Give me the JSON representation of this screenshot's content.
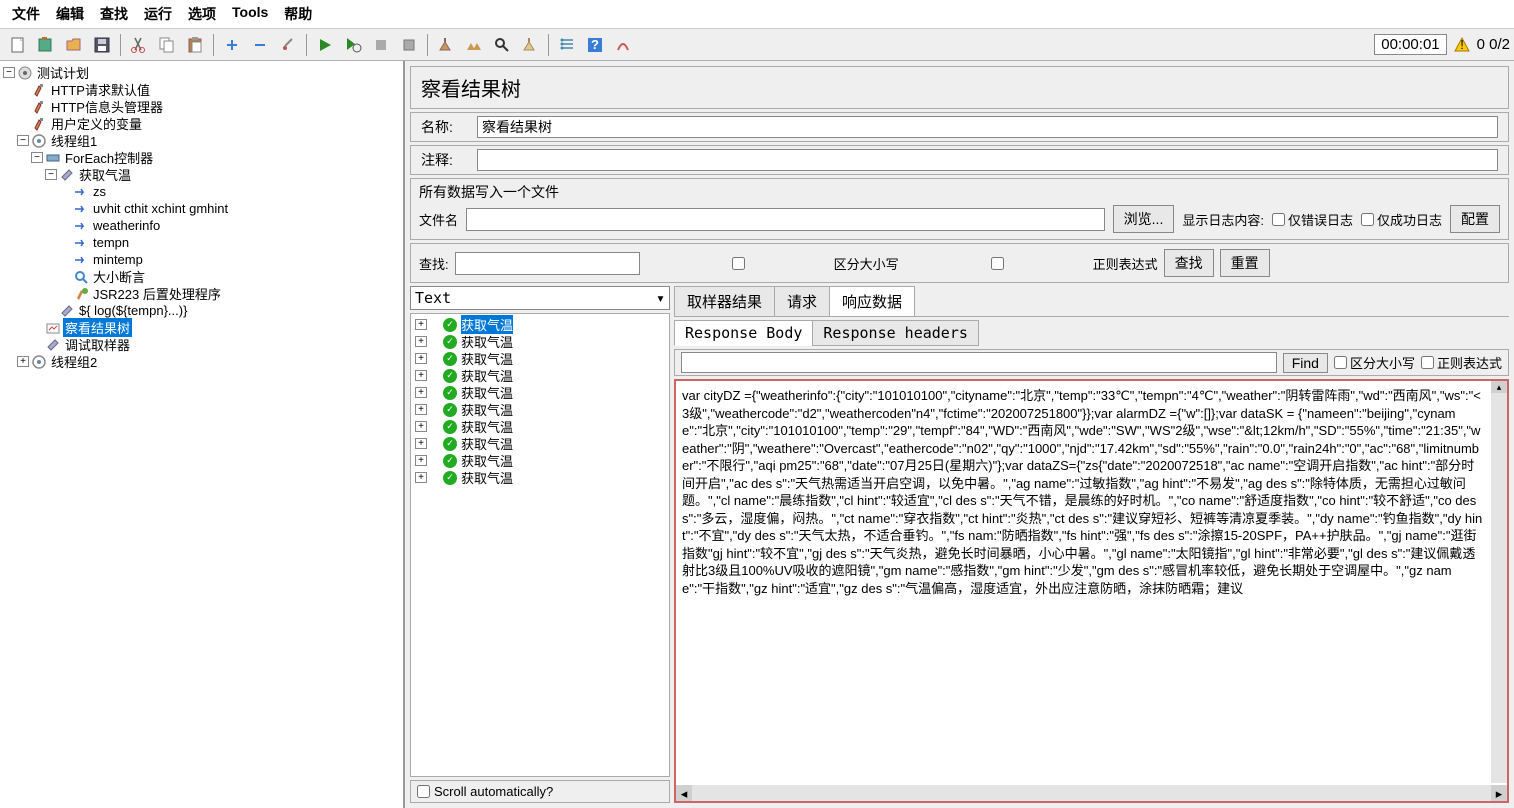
{
  "menu": [
    "文件",
    "编辑",
    "查找",
    "运行",
    "选项",
    "Tools",
    "帮助"
  ],
  "timer": "00:00:01",
  "counter": "0 0/2",
  "tree": [
    {
      "d": 0,
      "t": "-",
      "i": "plan",
      "l": "测试计划"
    },
    {
      "d": 1,
      "t": "",
      "i": "cfg",
      "l": "HTTP请求默认值"
    },
    {
      "d": 1,
      "t": "",
      "i": "cfg",
      "l": "HTTP信息头管理器"
    },
    {
      "d": 1,
      "t": "",
      "i": "cfg",
      "l": "用户定义的变量"
    },
    {
      "d": 1,
      "t": "-",
      "i": "tg",
      "l": "线程组1"
    },
    {
      "d": 2,
      "t": "-",
      "i": "ctrl",
      "l": "ForEach控制器"
    },
    {
      "d": 3,
      "t": "-",
      "i": "http",
      "l": "获取气温"
    },
    {
      "d": 4,
      "t": "",
      "i": "ext",
      "l": "zs"
    },
    {
      "d": 4,
      "t": "",
      "i": "ext",
      "l": "uvhit cthit xchint gmhint"
    },
    {
      "d": 4,
      "t": "",
      "i": "ext",
      "l": "weatherinfo"
    },
    {
      "d": 4,
      "t": "",
      "i": "ext",
      "l": "tempn"
    },
    {
      "d": 4,
      "t": "",
      "i": "ext",
      "l": "mintemp"
    },
    {
      "d": 4,
      "t": "",
      "i": "assert",
      "l": "大小断言"
    },
    {
      "d": 4,
      "t": "",
      "i": "jsr",
      "l": "JSR223 后置处理程序"
    },
    {
      "d": 3,
      "t": "",
      "i": "http",
      "l": "${   log(${tempn}...)}"
    },
    {
      "d": 2,
      "t": "",
      "i": "listener",
      "l": "察看结果树",
      "sel": true
    },
    {
      "d": 2,
      "t": "",
      "i": "sampler",
      "l": "调试取样器"
    },
    {
      "d": 1,
      "t": "+",
      "i": "tg",
      "l": "线程组2"
    }
  ],
  "right": {
    "title": "察看结果树",
    "name_label": "名称:",
    "name_value": "察看结果树",
    "comment_label": "注释:",
    "file_group_title": "所有数据写入一个文件",
    "file_label": "文件名",
    "browse": "浏览...",
    "log_label": "显示日志内容:",
    "only_error": "仅错误日志",
    "only_success": "仅成功日志",
    "configure": "配置",
    "search_label": "查找:",
    "case": "区分大小写",
    "regex": "正则表达式",
    "search_btn": "查找",
    "reset_btn": "重置",
    "dropdown": "Text",
    "results": [
      "获取气温",
      "获取气温",
      "获取气温",
      "获取气温",
      "获取气温",
      "获取气温",
      "获取气温",
      "获取气温",
      "获取气温",
      "获取气温"
    ],
    "scroll_label": "Scroll automatically?",
    "tabs": [
      "取样器结果",
      "请求",
      "响应数据"
    ],
    "subtabs": [
      "Response Body",
      "Response headers"
    ],
    "find": "Find",
    "body": "var cityDZ ={\"weatherinfo\":{\"city\":\"101010100\",\"cityname\":\"北京\",\"temp\":\"33℃\",\"tempn\":\"4℃\",\"weather\":\"阴转雷阵雨\",\"wd\":\"西南风\",\"ws\":\"<3级\",\"weathercode\":\"d2\",\"weathercoden\"n4\",\"fctime\":\"202007251800\"}};var alarmDZ ={\"w\":[]};var dataSK = {\"nameen\":\"beijing\",\"cyname\":\"北京\",\"city\":\"101010100\",\"temp\":\"29\",\"tempf\":\"84\",\"WD\":\"西南风\",\"wde\":\"SW\",\"WS\"2级\",\"wse\":\"&lt;12km/h\",\"SD\":\"55%\",\"time\":\"21:35\",\"weather\":\"阴\",\"weathere\":\"Overcast\",\"eathercode\":\"n02\",\"qy\":\"1000\",\"njd\":\"17.42km\",\"sd\":\"55%\",\"rain\":\"0.0\",\"rain24h\":\"0\",\"ac\":\"68\",\"limitnumber\":\"不限行\",\"aqi pm25\":\"68\",\"date\":\"07月25日(星期六)\"};var dataZS={\"zs{\"date\":\"2020072518\",\"ac name\":\"空调开启指数\",\"ac hint\":\"部分时间开启\",\"ac des s\":\"天气热需适当开启空调，以免中暑。\",\"ag name\":\"过敏指数\",\"ag hint\":\"不易发\",\"ag des s\":\"除特体质，无需担心过敏问题。\",\"cl name\":\"晨练指数\",\"cl hint\":\"较适宜\",\"cl des s\":\"天气不错，是晨练的好时机。\",\"co name\":\"舒适度指数\",\"co hint\":\"较不舒适\",\"co des s\":\"多云，湿度偏，闷热。\",\"ct name\":\"穿衣指数\",\"ct hint\":\"炎热\",\"ct des s\":\"建议穿短衫、短裤等清凉夏季装。\",\"dy name\":\"钓鱼指数\",\"dy hint\":\"不宜\",\"dy des s\":\"天气太热，不适合垂钓。\",\"fs nam:\"防晒指数\",\"fs hint\":\"强\",\"fs des s\":\"涂擦15-20SPF，PA++护肤品。\",\"gj name\":\"逛街指数\"gj hint\":\"较不宜\",\"gj des s\":\"天气炎热，避免长时间暴晒，小心中暑。\",\"gl name\":\"太阳镜指\",\"gl hint\":\"非常必要\",\"gl des s\":\"建议佩戴透射比3级且100%UV吸收的遮阳镜\",\"gm name\":\"感指数\",\"gm hint\":\"少发\",\"gm des s\":\"感冒机率较低，避免长期处于空调屋中。\",\"gz name\":\"干指数\",\"gz hint\":\"适宜\",\"gz des s\":\"气温偏高，湿度适宜，外出应注意防晒，涂抹防晒霜；建议"
  },
  "colors": {
    "selection": "#0078d7",
    "success": "#22aa22",
    "border_red": "#cc6666"
  }
}
